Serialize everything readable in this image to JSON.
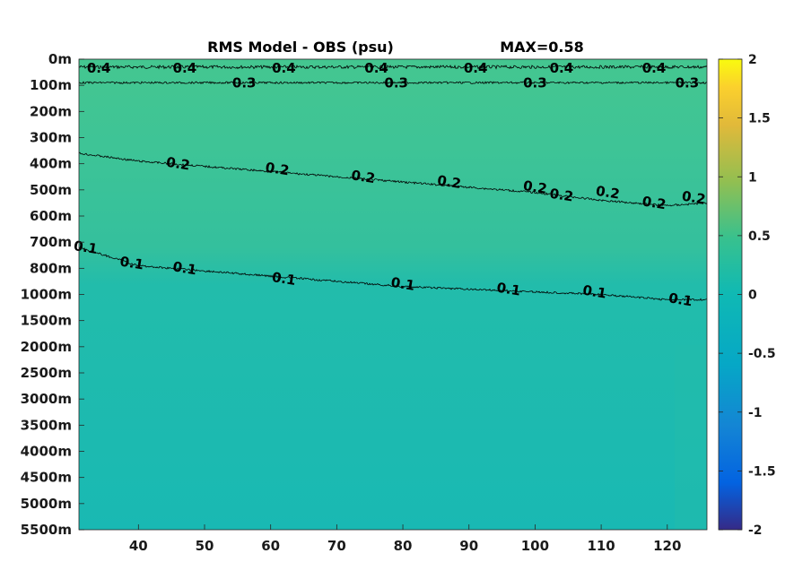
{
  "chart_data": {
    "type": "heatmap",
    "title": "RMS Model - OBS (psu)",
    "max_label": "MAX=0.58",
    "x_ticks": [
      40,
      50,
      60,
      70,
      80,
      90,
      100,
      110,
      120
    ],
    "xlim": [
      31,
      126
    ],
    "y_ticks": [
      "0m",
      "100m",
      "200m",
      "300m",
      "400m",
      "500m",
      "600m",
      "700m",
      "800m",
      "1000m",
      "1500m",
      "2000m",
      "2500m",
      "3000m",
      "3500m",
      "4000m",
      "4500m",
      "5000m",
      "5500m"
    ],
    "colorbar": {
      "ticks": [
        "2",
        "1.5",
        "1",
        "0.5",
        "0",
        "-0.5",
        "-1",
        "-1.5",
        "-2"
      ],
      "range": [
        -2,
        2
      ],
      "colormap": "parula"
    },
    "contours": [
      {
        "level": "0.4",
        "depth_index": [
          0.3,
          0.3,
          0.3,
          0.3,
          0.3,
          0.3,
          0.3,
          0.3,
          0.3,
          0.3,
          0.3
        ],
        "labels": [
          {
            "x": 34,
            "d": 0.35
          },
          {
            "x": 47,
            "d": 0.35
          },
          {
            "x": 62,
            "d": 0.35
          },
          {
            "x": 76,
            "d": 0.35
          },
          {
            "x": 91,
            "d": 0.35
          },
          {
            "x": 104,
            "d": 0.35
          },
          {
            "x": 118,
            "d": 0.35
          }
        ]
      },
      {
        "level": "0.3",
        "depth_index": [
          0.9,
          0.9,
          0.9,
          0.9,
          0.9,
          0.9,
          0.9,
          0.9,
          0.9,
          0.9,
          0.9
        ],
        "labels": [
          {
            "x": 56,
            "d": 0.9
          },
          {
            "x": 79,
            "d": 0.9
          },
          {
            "x": 100,
            "d": 0.9
          },
          {
            "x": 123,
            "d": 0.9
          }
        ]
      },
      {
        "level": "0.2",
        "x": [
          31,
          40,
          50,
          60,
          70,
          80,
          90,
          100,
          110,
          120,
          126
        ],
        "depth_index": [
          3.6,
          3.9,
          4.1,
          4.3,
          4.5,
          4.7,
          4.9,
          5.1,
          5.4,
          5.6,
          5.5
        ],
        "labels": [
          {
            "x": 46,
            "d": 4.0
          },
          {
            "x": 61,
            "d": 4.2
          },
          {
            "x": 74,
            "d": 4.5
          },
          {
            "x": 87,
            "d": 4.7
          },
          {
            "x": 100,
            "d": 4.9
          },
          {
            "x": 104,
            "d": 5.2
          },
          {
            "x": 111,
            "d": 5.1
          },
          {
            "x": 118,
            "d": 5.5
          },
          {
            "x": 124,
            "d": 5.3
          }
        ]
      },
      {
        "level": "0.1",
        "x": [
          31,
          40,
          50,
          60,
          70,
          80,
          90,
          100,
          110,
          120,
          126
        ],
        "depth_index": [
          7.2,
          7.9,
          8.1,
          8.3,
          8.5,
          8.7,
          8.8,
          8.9,
          9.0,
          9.2,
          9.2
        ],
        "labels": [
          {
            "x": 32,
            "d": 7.2
          },
          {
            "x": 39,
            "d": 7.8
          },
          {
            "x": 47,
            "d": 8.0
          },
          {
            "x": 62,
            "d": 8.4
          },
          {
            "x": 80,
            "d": 8.6
          },
          {
            "x": 96,
            "d": 8.8
          },
          {
            "x": 109,
            "d": 8.9
          },
          {
            "x": 122,
            "d": 9.2
          }
        ]
      }
    ],
    "field_colors": {
      "surface": "#40c495",
      "mid": "#35bf9a",
      "lower": "#23bca8",
      "deep": "#19b9b2"
    },
    "grid": false,
    "legend": "colorbar-right"
  }
}
